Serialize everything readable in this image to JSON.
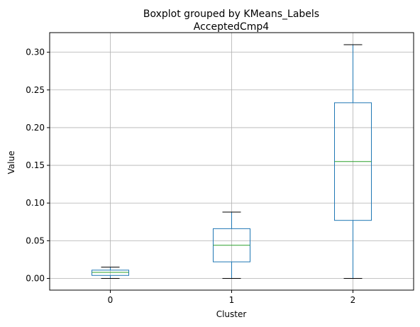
{
  "chart_data": {
    "type": "boxplot",
    "title": "Boxplot grouped by KMeans_Labels",
    "subtitle": "AcceptedCmp4",
    "xlabel": "Cluster",
    "ylabel": "Value",
    "categories": [
      "0",
      "1",
      "2"
    ],
    "y_ticks": [
      "0.00",
      "0.05",
      "0.10",
      "0.15",
      "0.20",
      "0.25",
      "0.30"
    ],
    "y_tick_values": [
      0.0,
      0.05,
      0.1,
      0.15,
      0.2,
      0.25,
      0.3
    ],
    "ylim": [
      -0.0155,
      0.326
    ],
    "grid": true,
    "colors": {
      "box": "#1f77b4",
      "median": "#2ca02c",
      "whisker_cap": "#000000",
      "grid": "#b0b0b0",
      "axis": "#000000"
    },
    "boxes": [
      {
        "category": "0",
        "whisker_low": 0.0,
        "q1": 0.004,
        "median": 0.008,
        "q3": 0.011,
        "whisker_high": 0.015
      },
      {
        "category": "1",
        "whisker_low": 0.0,
        "q1": 0.022,
        "median": 0.044,
        "q3": 0.066,
        "whisker_high": 0.088
      },
      {
        "category": "2",
        "whisker_low": 0.0,
        "q1": 0.077,
        "median": 0.155,
        "q3": 0.233,
        "whisker_high": 0.31
      }
    ]
  }
}
